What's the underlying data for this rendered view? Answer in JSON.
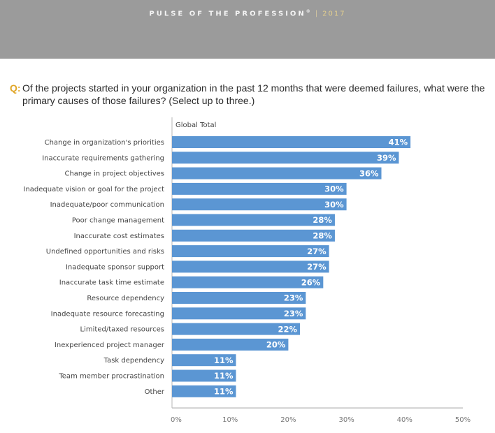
{
  "header": {
    "title": "PULSE OF THE PROFESSION",
    "registered": "®",
    "separator": "|",
    "year": "2017"
  },
  "question": {
    "label": "Q:",
    "text": "Of the projects started in your organization in the past 12 months that were deemed failures, what were the primary causes of those failures? (Select up to three.)"
  },
  "colors": {
    "header_bg": "#9b9b9b",
    "bar": "#5b96d3",
    "question_accent": "#e0a526",
    "axis": "#b5b5b5"
  },
  "chart_data": {
    "type": "bar",
    "orientation": "horizontal",
    "title": "",
    "series_label": "Global Total",
    "categories": [
      "Change in organization's priorities",
      "Inaccurate requirements gathering",
      "Change in project objectives",
      "Inadequate vision or goal for the project",
      "Inadequate/poor communication",
      "Poor change management",
      "Inaccurate cost estimates",
      "Undefined opportunities and risks",
      "Inadequate sponsor support",
      "Inaccurate task time estimate",
      "Resource dependency",
      "Inadequate resource forecasting",
      "Limited/taxed resources",
      "Inexperienced project manager",
      "Task dependency",
      "Team member procrastination",
      "Other"
    ],
    "series": [
      {
        "name": "Global Total",
        "values": [
          41,
          39,
          36,
          30,
          30,
          28,
          28,
          27,
          27,
          26,
          23,
          23,
          22,
          20,
          11,
          11,
          11
        ],
        "value_labels": [
          "41%",
          "39%",
          "36%",
          "30%",
          "30%",
          "28%",
          "28%",
          "27%",
          "27%",
          "26%",
          "23%",
          "23%",
          "22%",
          "20%",
          "11%",
          "11%",
          "11%"
        ]
      }
    ],
    "xlabel": "",
    "ylabel": "",
    "xlim": [
      0,
      50
    ],
    "xticks": [
      0,
      10,
      20,
      30,
      40,
      50
    ],
    "xtick_labels": [
      "0%",
      "10%",
      "20%",
      "30%",
      "40%",
      "50%"
    ],
    "grid": false,
    "legend": "none"
  }
}
